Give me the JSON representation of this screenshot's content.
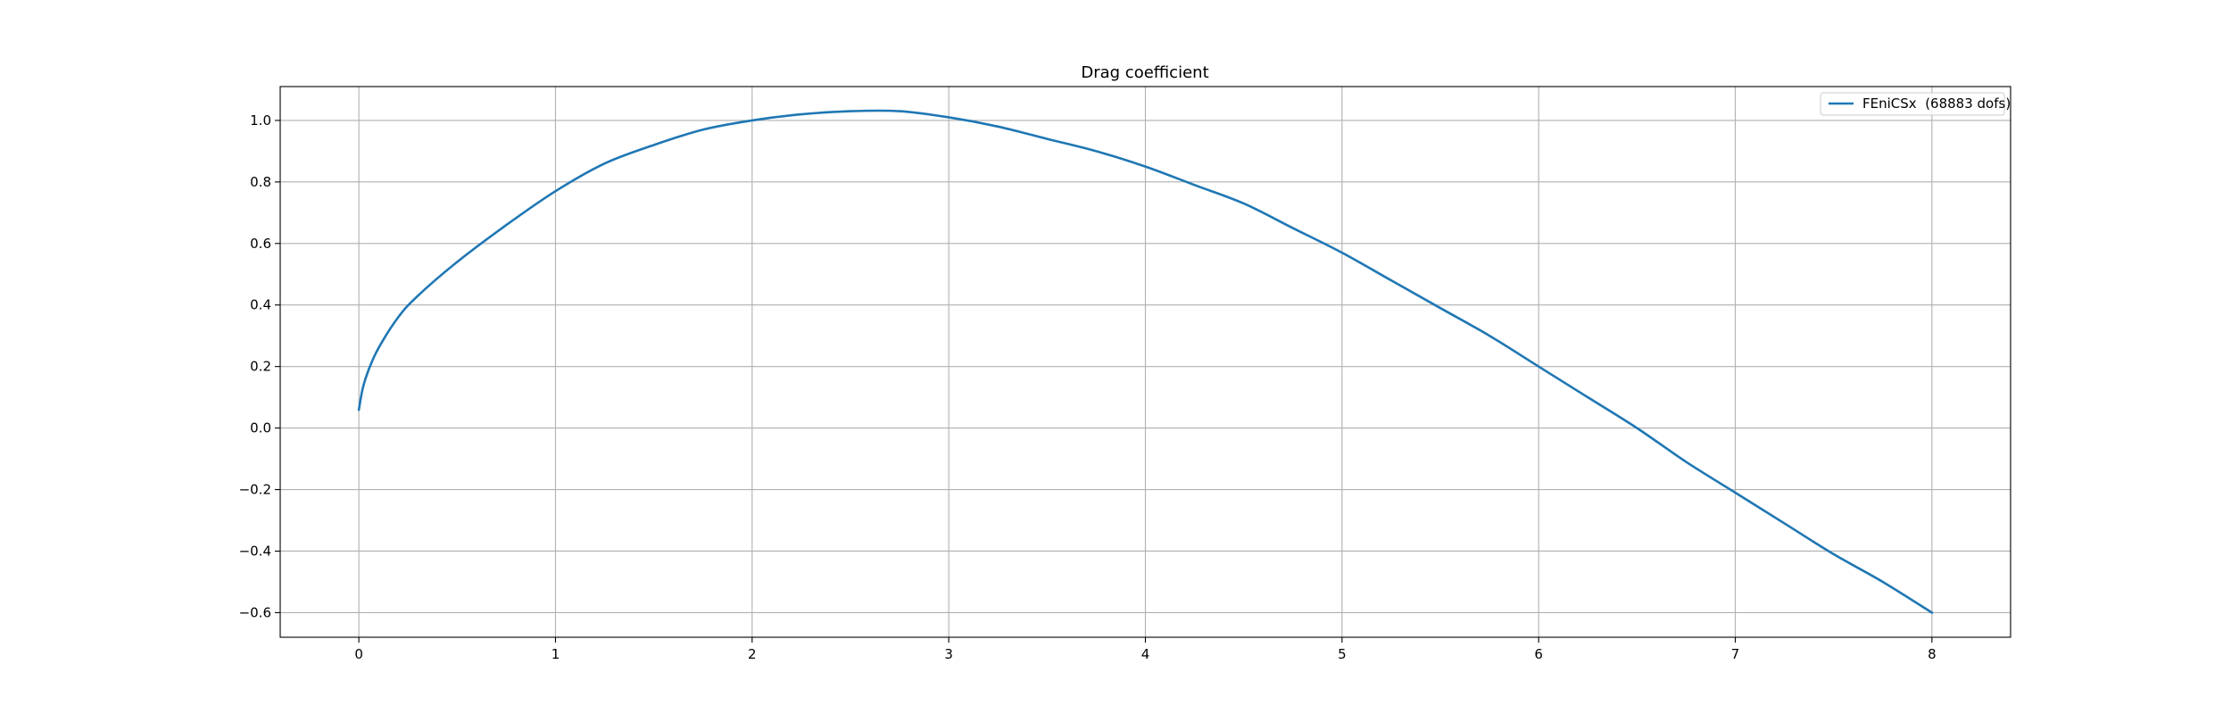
{
  "chart_data": {
    "type": "line",
    "title": "Drag coefficient",
    "xlabel": "",
    "ylabel": "",
    "xlim": [
      -0.4,
      8.4
    ],
    "ylim": [
      -0.68,
      1.11
    ],
    "x_ticks": [
      0,
      1,
      2,
      3,
      4,
      5,
      6,
      7,
      8
    ],
    "x_tick_labels": [
      "0",
      "1",
      "2",
      "3",
      "4",
      "5",
      "6",
      "7",
      "8"
    ],
    "y_ticks": [
      -0.6,
      -0.4,
      -0.2,
      0.0,
      0.2,
      0.4,
      0.6,
      0.8,
      1.0
    ],
    "y_tick_labels": [
      "−0.6",
      "−0.4",
      "−0.2",
      "0.0",
      "0.2",
      "0.4",
      "0.6",
      "0.8",
      "1.0"
    ],
    "grid": true,
    "legend_position": "top-right",
    "series": [
      {
        "name": "FEniCSx  (68883 dofs)",
        "color": "#1f77b4",
        "x": [
          0,
          0.02,
          0.05,
          0.1,
          0.2,
          0.3,
          0.5,
          0.75,
          1.0,
          1.25,
          1.5,
          1.75,
          2.0,
          2.25,
          2.5,
          2.75,
          3.0,
          3.25,
          3.5,
          3.75,
          4.0,
          4.25,
          4.5,
          4.75,
          5.0,
          5.25,
          5.5,
          5.75,
          6.0,
          6.25,
          6.5,
          6.75,
          7.0,
          7.25,
          7.5,
          7.75,
          8.0
        ],
        "y": [
          0.06,
          0.13,
          0.19,
          0.26,
          0.36,
          0.43,
          0.54,
          0.66,
          0.77,
          0.86,
          0.92,
          0.97,
          1.0,
          1.02,
          1.03,
          1.03,
          1.01,
          0.98,
          0.94,
          0.9,
          0.85,
          0.79,
          0.73,
          0.65,
          0.57,
          0.48,
          0.39,
          0.3,
          0.2,
          0.1,
          0.0,
          -0.11,
          -0.21,
          -0.31,
          -0.41,
          -0.5,
          -0.6
        ]
      }
    ]
  }
}
